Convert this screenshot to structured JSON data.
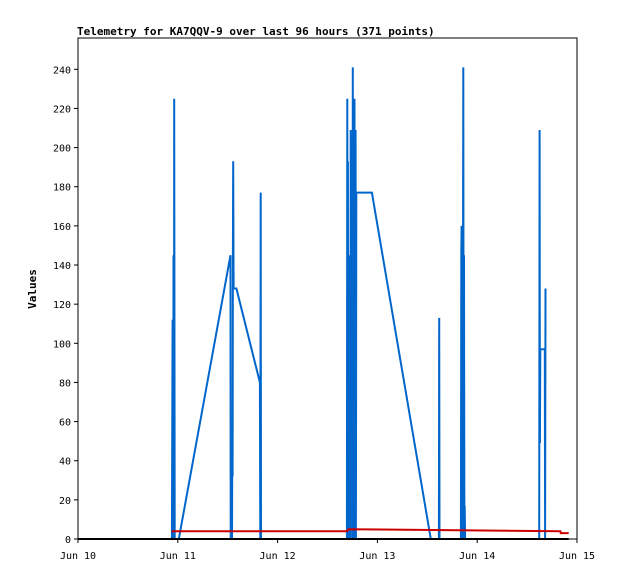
{
  "chart_data": {
    "type": "line",
    "title": "Telemetry for KA7QQV-9 over last 96 hours (371 points)",
    "xlabel": "",
    "ylabel": "Values",
    "x_axis": {
      "kind": "date",
      "ticks": [
        "Jun 10",
        "Jun 11",
        "Jun 12",
        "Jun 13",
        "Jun 14",
        "Jun 15"
      ],
      "range": [
        "2024-06-10T00:00",
        "2024-06-15T00:00"
      ]
    },
    "y_axis": {
      "ylim": [
        0,
        256
      ],
      "ticks": [
        0,
        20,
        40,
        60,
        80,
        100,
        120,
        140,
        160,
        180,
        200,
        220,
        240
      ]
    },
    "grid": false,
    "legend": "none",
    "series": [
      {
        "color": "#0066cc",
        "x": [
          "2024-06-10T22:35",
          "2024-06-10T22:45",
          "2024-06-10T22:53",
          "2024-06-10T22:58",
          "2024-06-10T23:05",
          "2024-06-10T23:08",
          "2024-06-10T23:15",
          "2024-06-11T00:15",
          "2024-06-11T12:40",
          "2024-06-11T12:44",
          "2024-06-11T13:02",
          "2024-06-11T13:06",
          "2024-06-11T13:10",
          "2024-06-11T13:15",
          "2024-06-11T13:20",
          "2024-06-11T13:25",
          "2024-06-11T14:05",
          "2024-06-11T19:45",
          "2024-06-11T19:50",
          "2024-06-11T19:56",
          "2024-06-11T20:01",
          "2024-06-11T20:05",
          "2024-06-12T16:40",
          "2024-06-12T16:45",
          "2024-06-12T16:50",
          "2024-06-12T16:55",
          "2024-06-12T17:00",
          "2024-06-12T17:05",
          "2024-06-12T17:10",
          "2024-06-12T17:15",
          "2024-06-12T17:20",
          "2024-06-12T17:25",
          "2024-06-12T17:30",
          "2024-06-12T17:35",
          "2024-06-12T18:00",
          "2024-06-12T18:05",
          "2024-06-12T18:10",
          "2024-06-12T18:15",
          "2024-06-12T18:20",
          "2024-06-12T18:25",
          "2024-06-12T18:30",
          "2024-06-12T18:35",
          "2024-06-12T18:40",
          "2024-06-12T18:45",
          "2024-06-12T18:50",
          "2024-06-12T18:55",
          "2024-06-12T19:00",
          "2024-06-12T19:05",
          "2024-06-12T19:10",
          "2024-06-12T19:15",
          "2024-06-12T19:20",
          "2024-06-12T19:25",
          "2024-06-12T19:30",
          "2024-06-12T19:35",
          "2024-06-12T19:40",
          "2024-06-12T19:45",
          "2024-06-12T19:50",
          "2024-06-12T19:55",
          "2024-06-12T20:00",
          "2024-06-12T20:05",
          "2024-06-12T20:10",
          "2024-06-12T20:15",
          "2024-06-12T20:20",
          "2024-06-12T20:25",
          "2024-06-12T20:30",
          "2024-06-12T20:35",
          "2024-06-12T20:40",
          "2024-06-12T22:30",
          "2024-06-12T22:40",
          "2024-06-13T12:50",
          "2024-06-13T14:45",
          "2024-06-13T14:48",
          "2024-06-13T14:52",
          "2024-06-13T14:56",
          "2024-06-13T15:00",
          "2024-06-13T15:05",
          "2024-06-13T15:45",
          "2024-06-13T16:10",
          "2024-06-13T20:05",
          "2024-06-13T20:10",
          "2024-06-13T20:15",
          "2024-06-13T20:20",
          "2024-06-13T20:25",
          "2024-06-13T20:30",
          "2024-06-13T20:40",
          "2024-06-13T20:45",
          "2024-06-13T20:50",
          "2024-06-13T20:55",
          "2024-06-13T21:00",
          "2024-06-13T21:05",
          "2024-06-13T21:10",
          "2024-06-13T21:15",
          "2024-06-13T21:20",
          "2024-06-13T21:25",
          "2024-06-13T21:30",
          "2024-06-13T21:35",
          "2024-06-13T21:40",
          "2024-06-13T21:45",
          "2024-06-14T14:55",
          "2024-06-14T15:00",
          "2024-06-14T15:05",
          "2024-06-14T15:10",
          "2024-06-14T15:15",
          "2024-06-14T15:20",
          "2024-06-14T16:15",
          "2024-06-14T16:20",
          "2024-06-14T16:25"
        ],
        "values": [
          0,
          112,
          0,
          145,
          0,
          225,
          0,
          0,
          145,
          0,
          0,
          49,
          32,
          145,
          193,
          128,
          128,
          80,
          0,
          177,
          0,
          0,
          0,
          225,
          0,
          193,
          0,
          128,
          128,
          97,
          0,
          145,
          0,
          209,
          0,
          241,
          0,
          225,
          0,
          113,
          225,
          0,
          0,
          209,
          0,
          177,
          177,
          177,
          177,
          177,
          177,
          177,
          177,
          177,
          177,
          177,
          177,
          177,
          177,
          177,
          177,
          177,
          177,
          177,
          177,
          177,
          177,
          177,
          177,
          0,
          0,
          0,
          113,
          0,
          0,
          0,
          0,
          0,
          0,
          145,
          160,
          0,
          128,
          0,
          241,
          0,
          145,
          0,
          17,
          0,
          0,
          0,
          0,
          0,
          0,
          0,
          0,
          0,
          0,
          209,
          49,
          97,
          97,
          97,
          97,
          0,
          128
        ]
      },
      {
        "color": "#cc0000",
        "x": [
          "2024-06-10T22:30",
          "2024-06-12T16:40",
          "2024-06-12T17:00",
          "2024-06-14T20:00",
          "2024-06-14T20:05",
          "2024-06-14T22:00"
        ],
        "values": [
          4,
          4,
          5,
          4,
          3,
          3
        ]
      },
      {
        "color": "#000000",
        "x": [
          "2024-06-10T00:00",
          "2024-06-14T22:00"
        ],
        "values": [
          0,
          0
        ]
      }
    ]
  }
}
